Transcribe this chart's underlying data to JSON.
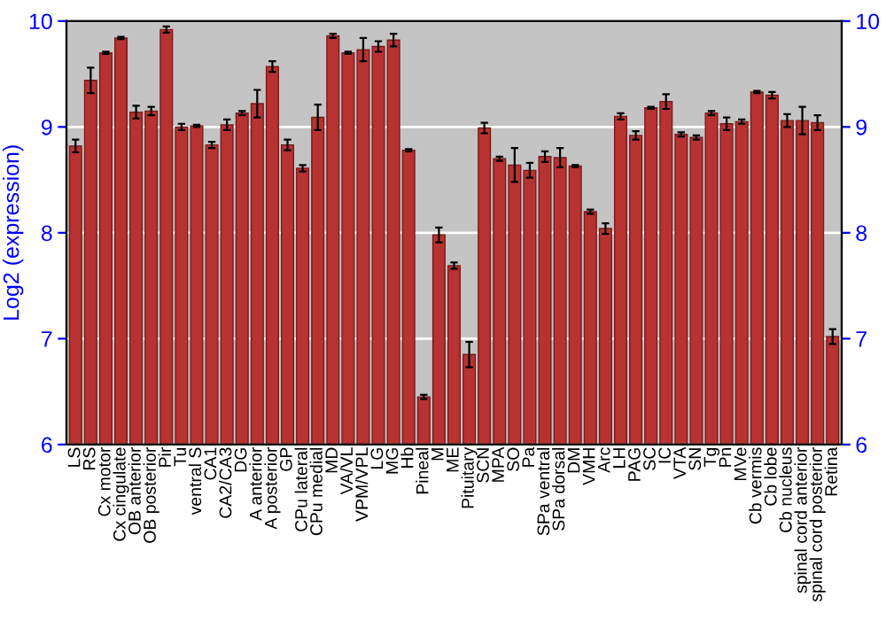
{
  "chart_data": {
    "type": "bar",
    "ylabel": "Log2 (expression)",
    "categories": [
      "LS",
      "RS",
      "Cx motor",
      "Cx cingulate",
      "OB anterior",
      "OB posterior",
      "Pir",
      "Tu",
      "ventral S",
      "CA1",
      "CA2/CA3",
      "DG",
      "A anterior",
      "A posterior",
      "GP",
      "CPu lateral",
      "CPu medial",
      "MD",
      "VA/VL",
      "VPM/VPL",
      "LG",
      "MG",
      "Hb",
      "Pineal",
      "M",
      "ME",
      "Pituitary",
      "SCN",
      "MPA",
      "SO",
      "Pa",
      "SPa ventral",
      "SPa dorsal",
      "DM",
      "VMH",
      "Arc",
      "LH",
      "PAG",
      "SC",
      "IC",
      "VTA",
      "SN",
      "Tg",
      "Pn",
      "MVe",
      "Cb vermis",
      "Cb lobe",
      "Cb nucleus",
      "spinal cord anterior",
      "spinal cord posterior",
      "Retina"
    ],
    "values": [
      8.82,
      9.44,
      9.7,
      9.84,
      9.14,
      9.15,
      9.92,
      9.0,
      9.01,
      8.83,
      9.02,
      9.13,
      9.22,
      9.57,
      8.83,
      8.61,
      9.09,
      9.86,
      9.7,
      9.73,
      9.76,
      9.82,
      8.78,
      6.45,
      7.98,
      7.69,
      6.85,
      8.99,
      8.7,
      8.64,
      8.59,
      8.72,
      8.71,
      8.63,
      8.2,
      8.04,
      9.1,
      8.92,
      9.18,
      9.24,
      8.93,
      8.9,
      9.13,
      9.03,
      9.05,
      9.33,
      9.3,
      9.06,
      9.06,
      9.04,
      7.02
    ],
    "errors": [
      0.06,
      0.12,
      0.01,
      0.01,
      0.06,
      0.04,
      0.03,
      0.03,
      0.01,
      0.03,
      0.05,
      0.02,
      0.13,
      0.05,
      0.05,
      0.03,
      0.12,
      0.02,
      0.01,
      0.11,
      0.05,
      0.06,
      0.01,
      0.02,
      0.07,
      0.03,
      0.12,
      0.05,
      0.02,
      0.16,
      0.07,
      0.05,
      0.09,
      0.01,
      0.02,
      0.05,
      0.03,
      0.04,
      0.01,
      0.07,
      0.02,
      0.02,
      0.02,
      0.06,
      0.02,
      0.01,
      0.03,
      0.06,
      0.13,
      0.07,
      0.07
    ],
    "color": "#b83232",
    "ylim": [
      6,
      10
    ],
    "yticks": [
      6,
      7,
      8,
      9,
      10
    ],
    "y2lim": [
      6,
      10
    ],
    "y2ticks": [
      6,
      7,
      8,
      9,
      10
    ],
    "grid": "y"
  }
}
